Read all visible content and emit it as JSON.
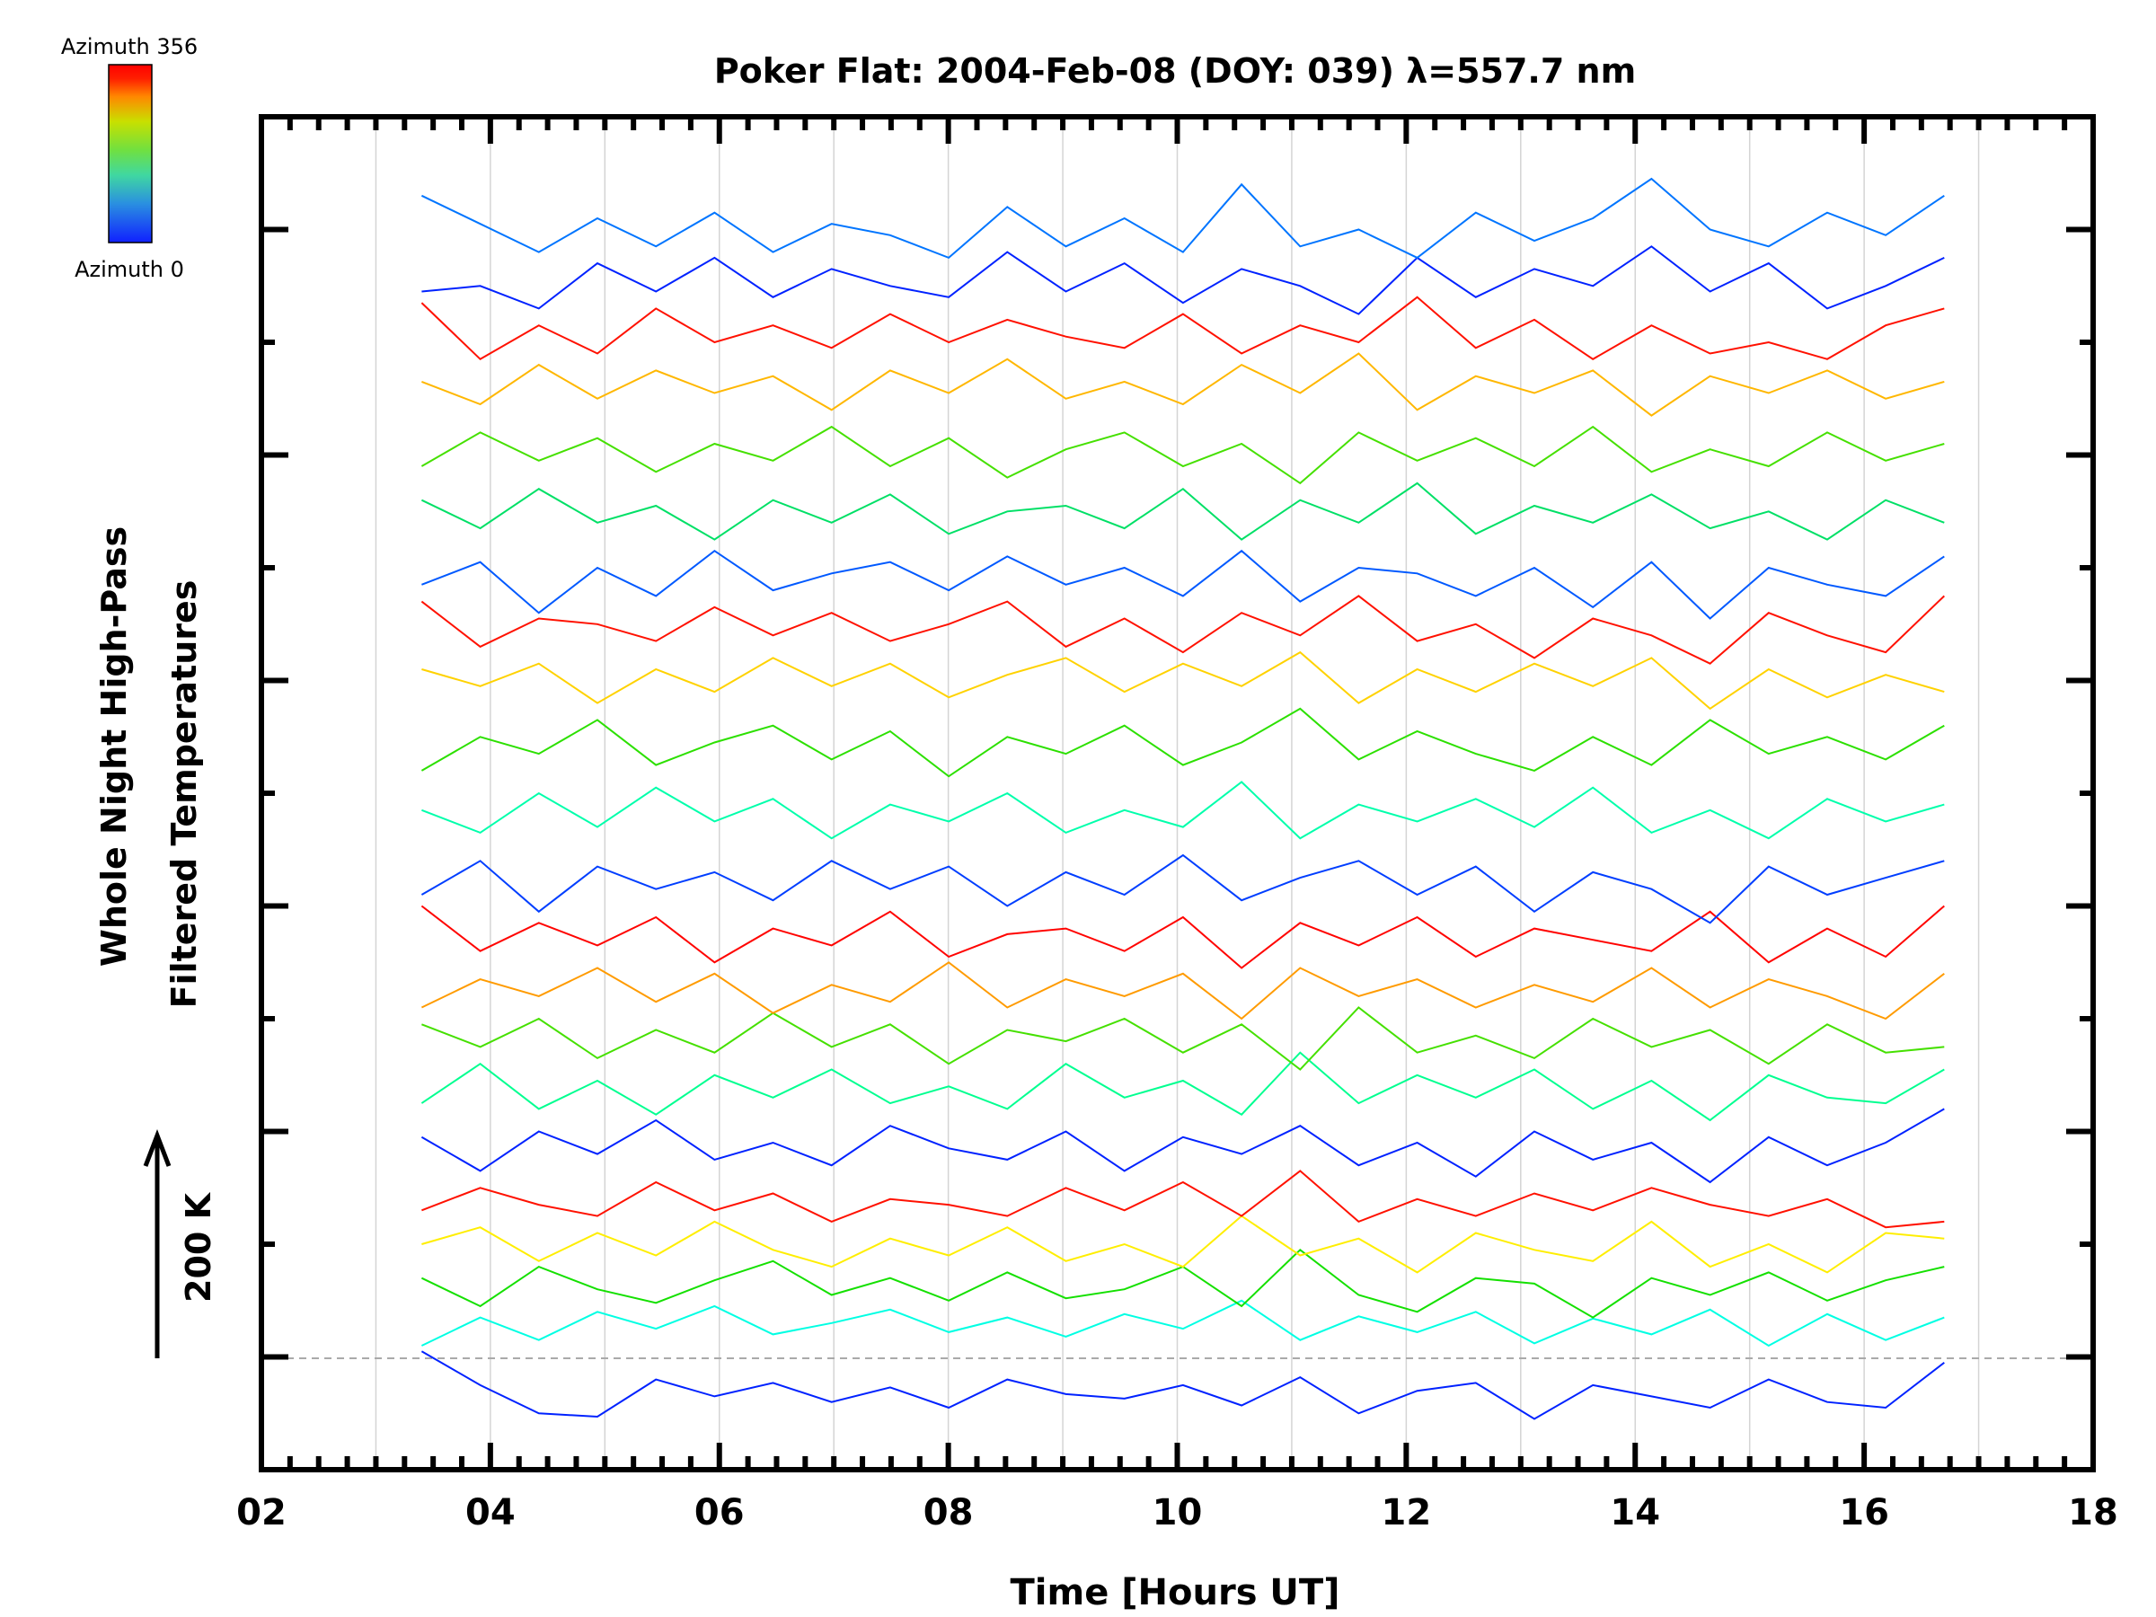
{
  "chart_data": {
    "type": "line",
    "title": "Poker Flat: 2004-Feb-08 (DOY: 039) λ=557.7 nm",
    "xlabel": "Time [Hours UT]",
    "ylabel_lines": [
      "Whole Night High-Pass",
      "Filtered Temperatures"
    ],
    "scale_arrow_label": "200 K",
    "scale_arrow_kelvin": 200,
    "xlim": [
      2,
      18
    ],
    "ylim": [
      -100,
      1100
    ],
    "x_ticks": [
      "02",
      "04",
      "06",
      "08",
      "10",
      "12",
      "14",
      "16",
      "18"
    ],
    "x_tick_values": [
      2,
      4,
      6,
      8,
      10,
      12,
      14,
      16,
      18
    ],
    "grid": "vertical every hour",
    "baseline_kelvin": 0,
    "colorbar": {
      "top_label": "Azimuth 356",
      "bottom_label": "Azimuth 0",
      "min": 0,
      "max": 356,
      "placement": "top-left"
    },
    "x_start": 3.4,
    "x_end": 16.7,
    "series_note": "each series is offset vertically by its offset (K); values are filtered temperature deviations (K)",
    "series": [
      {
        "azimuth": 0,
        "offset": -15,
        "values": [
          20,
          -10,
          -35,
          -38,
          -5,
          -20,
          -8,
          -25,
          -12,
          -30,
          -5,
          -18,
          -22,
          -10,
          -28,
          -3,
          -35,
          -15,
          -8,
          -40,
          -10,
          -20,
          -30,
          -5,
          -25,
          -30,
          10
        ]
      },
      {
        "azimuth": 90,
        "offset": 30,
        "values": [
          -20,
          5,
          -15,
          10,
          -5,
          15,
          -10,
          0,
          12,
          -8,
          5,
          -12,
          8,
          -5,
          20,
          -15,
          6,
          -8,
          10,
          -18,
          4,
          -10,
          12,
          -20,
          8,
          -15,
          5
        ]
      },
      {
        "azimuth": 180,
        "offset": 60,
        "values": [
          10,
          -15,
          20,
          0,
          -12,
          8,
          25,
          -5,
          10,
          -10,
          15,
          -8,
          0,
          20,
          -15,
          35,
          -5,
          -20,
          10,
          5,
          -25,
          10,
          -5,
          15,
          -10,
          8,
          20
        ]
      },
      {
        "azimuth": 270,
        "offset": 95,
        "values": [
          5,
          20,
          -10,
          15,
          -5,
          25,
          0,
          -15,
          10,
          -5,
          20,
          -10,
          5,
          -15,
          30,
          -5,
          10,
          -20,
          15,
          0,
          -10,
          25,
          -15,
          5,
          -20,
          15,
          10
        ]
      },
      {
        "azimuth": 350,
        "offset": 135,
        "values": [
          -5,
          15,
          0,
          -10,
          20,
          -5,
          10,
          -15,
          5,
          0,
          -10,
          15,
          -5,
          20,
          -10,
          30,
          -15,
          5,
          -10,
          10,
          -5,
          15,
          0,
          -10,
          5,
          -20,
          -15
        ]
      },
      {
        "azimuth": 0,
        "offset": 185,
        "values": [
          10,
          -20,
          15,
          -5,
          25,
          -10,
          5,
          -15,
          20,
          0,
          -10,
          15,
          -20,
          10,
          -5,
          20,
          -15,
          5,
          -25,
          15,
          -10,
          5,
          -30,
          10,
          -15,
          5,
          35
        ]
      },
      {
        "azimuth": 120,
        "offset": 235,
        "values": [
          -10,
          25,
          -15,
          10,
          -20,
          15,
          -5,
          20,
          -10,
          5,
          -15,
          25,
          -5,
          10,
          -20,
          35,
          -10,
          15,
          -5,
          20,
          -15,
          10,
          -25,
          15,
          -5,
          -10,
          20
        ]
      },
      {
        "azimuth": 200,
        "offset": 280,
        "values": [
          15,
          -5,
          20,
          -15,
          10,
          -10,
          25,
          -5,
          15,
          -20,
          10,
          0,
          20,
          -10,
          15,
          -25,
          30,
          -10,
          5,
          -15,
          20,
          -5,
          10,
          -20,
          15,
          -10,
          -5
        ]
      },
      {
        "azimuth": 300,
        "offset": 325,
        "values": [
          -15,
          10,
          -5,
          20,
          -10,
          15,
          -20,
          5,
          -10,
          25,
          -15,
          10,
          -5,
          15,
          -25,
          20,
          -5,
          10,
          -15,
          5,
          -10,
          20,
          -15,
          10,
          -5,
          -25,
          15
        ]
      },
      {
        "azimuth": 355,
        "offset": 370,
        "values": [
          30,
          -10,
          15,
          -5,
          20,
          -20,
          10,
          -5,
          25,
          -15,
          5,
          10,
          -10,
          20,
          -25,
          15,
          -5,
          20,
          -15,
          10,
          0,
          -10,
          25,
          -20,
          10,
          -15,
          30
        ]
      },
      {
        "azimuth": 10,
        "offset": 420,
        "values": [
          -10,
          20,
          -25,
          15,
          -5,
          10,
          -15,
          20,
          -5,
          15,
          -20,
          10,
          -10,
          25,
          -15,
          5,
          20,
          -10,
          15,
          -25,
          10,
          -5,
          -35,
          15,
          -10,
          5,
          20
        ]
      },
      {
        "azimuth": 110,
        "offset": 480,
        "values": [
          5,
          -15,
          20,
          -10,
          25,
          -5,
          15,
          -20,
          10,
          -5,
          20,
          -15,
          5,
          -10,
          30,
          -20,
          10,
          -5,
          15,
          -10,
          25,
          -15,
          5,
          -20,
          15,
          -5,
          10
        ]
      },
      {
        "azimuth": 190,
        "offset": 540,
        "values": [
          -20,
          10,
          -5,
          25,
          -15,
          5,
          20,
          -10,
          15,
          -25,
          10,
          -5,
          20,
          -15,
          5,
          35,
          -10,
          15,
          -5,
          -20,
          10,
          -15,
          25,
          -5,
          10,
          -10,
          20
        ]
      },
      {
        "azimuth": 280,
        "offset": 600,
        "values": [
          10,
          -5,
          15,
          -20,
          10,
          -10,
          20,
          -5,
          15,
          -15,
          5,
          20,
          -10,
          15,
          -5,
          25,
          -20,
          10,
          -10,
          15,
          -5,
          20,
          -25,
          10,
          -15,
          5,
          -10
        ]
      },
      {
        "azimuth": 350,
        "offset": 645,
        "values": [
          25,
          -15,
          10,
          5,
          -10,
          20,
          -5,
          15,
          -10,
          5,
          25,
          -15,
          10,
          -20,
          15,
          -5,
          30,
          -10,
          5,
          -25,
          10,
          -5,
          -30,
          15,
          -5,
          -20,
          30
        ]
      },
      {
        "azimuth": 20,
        "offset": 690,
        "values": [
          -5,
          15,
          -30,
          10,
          -15,
          25,
          -10,
          5,
          15,
          -10,
          20,
          -5,
          10,
          -15,
          25,
          -20,
          10,
          5,
          -15,
          10,
          -25,
          15,
          -35,
          10,
          -5,
          -15,
          20
        ]
      },
      {
        "azimuth": 130,
        "offset": 745,
        "values": [
          15,
          -10,
          25,
          -5,
          10,
          -20,
          15,
          -5,
          20,
          -15,
          5,
          10,
          -10,
          25,
          -20,
          15,
          -5,
          30,
          -15,
          10,
          -5,
          20,
          -10,
          5,
          -20,
          15,
          -5
        ]
      },
      {
        "azimuth": 200,
        "offset": 800,
        "values": [
          -10,
          20,
          -5,
          15,
          -15,
          10,
          -5,
          25,
          -10,
          15,
          -20,
          5,
          20,
          -10,
          10,
          -25,
          20,
          -5,
          15,
          -10,
          25,
          -15,
          5,
          -10,
          20,
          -5,
          10
        ]
      },
      {
        "azimuth": 290,
        "offset": 860,
        "values": [
          5,
          -15,
          20,
          -10,
          15,
          -5,
          10,
          -20,
          15,
          -5,
          25,
          -10,
          5,
          -15,
          20,
          -5,
          30,
          -20,
          10,
          -5,
          15,
          -25,
          10,
          -5,
          15,
          -10,
          5
        ]
      },
      {
        "azimuth": 350,
        "offset": 905,
        "values": [
          30,
          -20,
          10,
          -15,
          25,
          -5,
          10,
          -10,
          20,
          -5,
          15,
          0,
          -10,
          20,
          -15,
          10,
          -5,
          35,
          -10,
          15,
          -20,
          10,
          -15,
          -5,
          -20,
          10,
          25
        ]
      },
      {
        "azimuth": 0,
        "offset": 955,
        "values": [
          -10,
          -5,
          -25,
          15,
          -10,
          20,
          -15,
          10,
          -5,
          -15,
          25,
          -10,
          15,
          -20,
          10,
          -5,
          -30,
          20,
          -15,
          10,
          -5,
          30,
          -10,
          15,
          -25,
          -5,
          20
        ]
      },
      {
        "azimuth": 30,
        "offset": 990,
        "values": [
          40,
          15,
          -10,
          20,
          -5,
          25,
          -10,
          15,
          5,
          -15,
          30,
          -5,
          20,
          -10,
          50,
          -5,
          10,
          -15,
          25,
          0,
          20,
          55,
          10,
          -5,
          25,
          5,
          40
        ]
      }
    ]
  }
}
